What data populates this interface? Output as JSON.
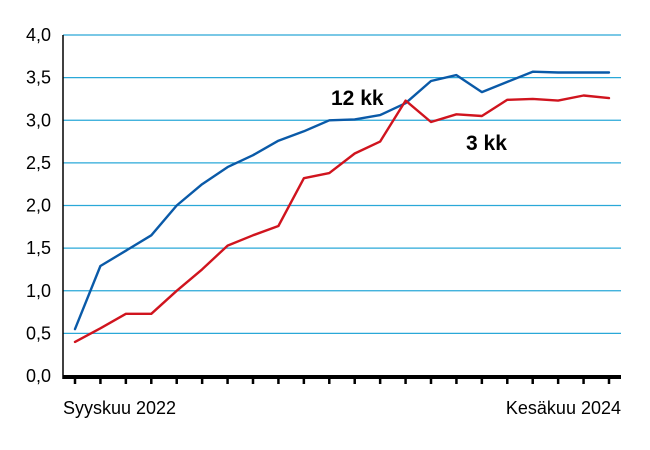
{
  "chart_data": {
    "type": "line",
    "title": "",
    "xlabel": "",
    "ylabel": "",
    "ylim": [
      0,
      4
    ],
    "y_ticks": [
      0,
      0.5,
      1.0,
      1.5,
      2.0,
      2.5,
      3.0,
      3.5,
      4.0
    ],
    "y_tick_labels": [
      "0,0",
      "0,5",
      "1,0",
      "1,5",
      "2,0",
      "2,5",
      "3,0",
      "3,5",
      "4,0"
    ],
    "x_start_label": "Syyskuu 2022",
    "x_end_label": "Kesäkuu 2024",
    "x": [
      "2022-09",
      "2022-10",
      "2022-11",
      "2022-12",
      "2023-01",
      "2023-02",
      "2023-03",
      "2023-04",
      "2023-05",
      "2023-06",
      "2023-07",
      "2023-08",
      "2023-09",
      "2023-10",
      "2023-11",
      "2023-12",
      "2024-01",
      "2024-02",
      "2024-03",
      "2024-04",
      "2024-05",
      "2024-06"
    ],
    "grid": true,
    "series": [
      {
        "name": "12 kk",
        "color": "#0a5aa8",
        "values": [
          0.55,
          1.29,
          1.47,
          1.65,
          2.0,
          2.25,
          2.45,
          2.59,
          2.76,
          2.87,
          3.0,
          3.01,
          3.06,
          3.2,
          3.46,
          3.53,
          3.33,
          3.45,
          3.57,
          3.56,
          3.56,
          3.56
        ]
      },
      {
        "name": "3 kk",
        "color": "#d0141e",
        "values": [
          0.4,
          0.56,
          0.73,
          0.73,
          1.0,
          1.25,
          1.53,
          1.65,
          1.76,
          2.32,
          2.38,
          2.61,
          2.75,
          3.23,
          2.98,
          3.07,
          3.05,
          3.24,
          3.25,
          3.23,
          3.29,
          3.26
        ]
      }
    ]
  }
}
